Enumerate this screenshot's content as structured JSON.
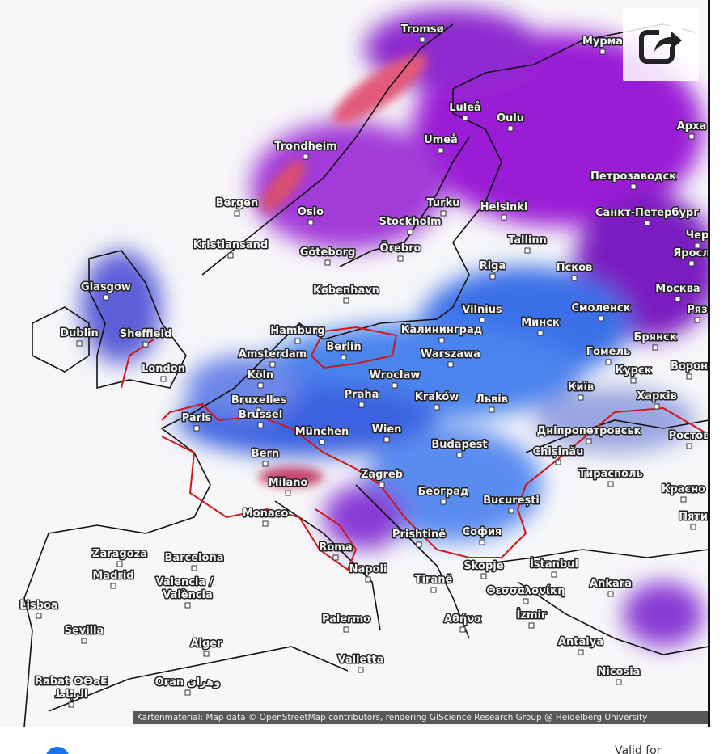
{
  "map": {
    "cities": [
      "Tromsø",
      "Мурма",
      "Luleå",
      "Oulu",
      "Арха",
      "Trondheim",
      "Umeå",
      "Петрозаводск",
      "Bergen",
      "Oslo",
      "Turku",
      "Helsinki",
      "Санкт-Петербург",
      "Stockholm",
      "Kristiansand",
      "Göteborg",
      "Örebro",
      "Tallinn",
      "Чер",
      "Яросл",
      "Riga",
      "Псков",
      "Glasgow",
      "København",
      "Москва",
      "Vilnius",
      "Смоленск",
      "Ряз",
      "Минск",
      "Dublin",
      "Sheffield",
      "Hamburg",
      "Калининград",
      "Брянск",
      "Berlin",
      "Amsterdam",
      "Warszawa",
      "Гомель",
      "London",
      "Курск",
      "Ворон",
      "Köln",
      "Wrocław",
      "Київ",
      "Praha",
      "Kraków",
      "Львів",
      "Харків",
      "Bruxelles",
      "Brussel",
      "Paris",
      "München",
      "Wien",
      "Дніпропетровськ",
      "Ростов",
      "Budapest",
      "Chișinău",
      "Bern",
      "Zagreb",
      "Тирасполь",
      "Milano",
      "Београд",
      "Красно",
      "București",
      "Пяти",
      "Monaco",
      "Prishtinë",
      "София",
      "Roma",
      "Zaragoza",
      "Barcelona",
      "Skopje",
      "İstanbul",
      "Madrid",
      "Napoli",
      "Tiranë",
      "Ankara",
      "Valencia /",
      "València",
      "Θεσσαλονίκη",
      "Lisboa",
      "Palermo",
      "Αθήνα",
      "İzmir",
      "Sevilla",
      "Alger",
      "Antalya",
      "Valletta",
      "Nicosia",
      "Rabat ⵔⴱⴰⵟ",
      "الرباط",
      "Oran وهران"
    ],
    "attribution": "Kartenmaterial: Map data © OpenStreetMap contributors, rendering GIScience Research Group @ Heidelberg University"
  },
  "footer": {
    "valid_for": "Valid for"
  }
}
